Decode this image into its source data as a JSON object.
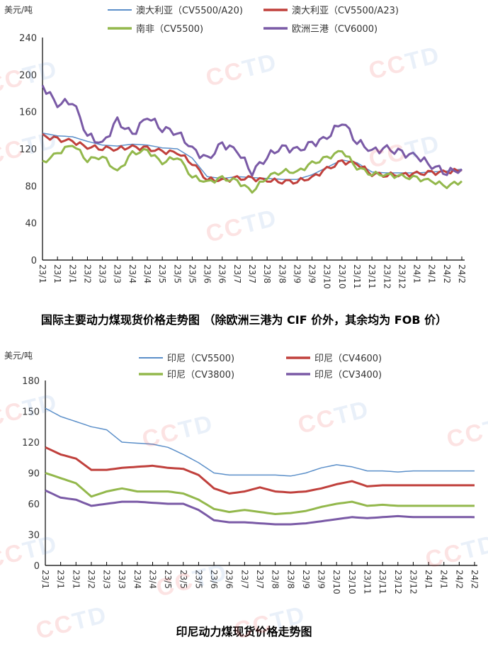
{
  "watermark": "CCTD",
  "charts": [
    {
      "chart_data": {
        "type": "line",
        "title": "国际主要动力煤现货价格走势图 （除欧洲三港为 CIF 价外，其余均为 FOB 价）",
        "ylabel": "美元/吨",
        "xlabel": "",
        "ylim": [
          0,
          240
        ],
        "yticks": [
          0,
          40,
          80,
          120,
          160,
          200,
          240
        ],
        "legend": "top",
        "grid": false,
        "categories": [
          "23/1",
          "23/1",
          "23/1",
          "23/2",
          "23/3",
          "23/3",
          "23/4",
          "23/4",
          "23/5",
          "23/5",
          "23/5",
          "23/6",
          "23/6",
          "23/7",
          "23/7",
          "23/8",
          "23/8",
          "23/9",
          "23/9",
          "23/10",
          "23/10",
          "23/11",
          "23/11",
          "23/12",
          "23/12",
          "24/1",
          "24/1",
          "24/2",
          "24/2"
        ],
        "series": [
          {
            "name": "澳大利亚（CV5500/A20)",
            "color": "#5b8fc9",
            "width": 1.5,
            "values": [
              137,
              134,
              133,
              128,
              124,
              123,
              125,
              124,
              121,
              120,
              110,
              90,
              88,
              90,
              89,
              88,
              87,
              87,
              92,
              100,
              108,
              105,
              95,
              94,
              94,
              94,
              95,
              96,
              98
            ]
          },
          {
            "name": "澳大利亚（CV5500/A23)",
            "color": "#c0403c",
            "width": 3,
            "values": [
              134,
              130,
              128,
              122,
              121,
              120,
              122,
              120,
              117,
              116,
              105,
              87,
              86,
              88,
              88,
              86,
              85,
              85,
              89,
              98,
              106,
              104,
              93,
              92,
              92,
              93,
              94,
              95,
              97
            ]
          },
          {
            "name": "南非（CV5500)",
            "color": "#93b84c",
            "width": 3,
            "values": [
              105,
              115,
              125,
              108,
              112,
              95,
              115,
              118,
              105,
              112,
              90,
              84,
              88,
              85,
              74,
              90,
              96,
              95,
              104,
              110,
              118,
              100,
              93,
              92,
              90,
              88,
              85,
              80,
              85
            ]
          },
          {
            "name": "欧洲三港（CV6000)",
            "color": "#7a5aa6",
            "width": 3,
            "values": [
              188,
              168,
              172,
              135,
              125,
              150,
              135,
              155,
              142,
              138,
              120,
              108,
              125,
              118,
              95,
              112,
              122,
              118,
              125,
              132,
              150,
              128,
              118,
              120,
              115,
              112,
              102,
              95,
              98
            ]
          }
        ]
      }
    },
    {
      "chart_data": {
        "type": "line",
        "title": "印尼动力煤现货价格走势图",
        "ylabel": "美元/吨",
        "xlabel": "",
        "ylim": [
          0,
          180
        ],
        "yticks": [
          0,
          30,
          60,
          90,
          120,
          150,
          180
        ],
        "legend": "top",
        "grid": false,
        "categories": [
          "23/1",
          "23/1",
          "23/1",
          "23/2",
          "23/3",
          "23/3",
          "23/4",
          "23/4",
          "23/5",
          "23/5",
          "23/5",
          "23/6",
          "23/6",
          "23/7",
          "23/7",
          "23/8",
          "23/8",
          "23/9",
          "23/9",
          "23/10",
          "23/10",
          "23/11",
          "23/11",
          "23/12",
          "23/12",
          "24/1",
          "24/1",
          "24/2",
          "24/2"
        ],
        "series": [
          {
            "name": "印尼（CV5500)",
            "color": "#5b8fc9",
            "width": 1.5,
            "values": [
              153,
              145,
              140,
              135,
              132,
              120,
              119,
              118,
              115,
              108,
              100,
              90,
              88,
              88,
              88,
              88,
              87,
              90,
              95,
              98,
              96,
              92,
              92,
              91,
              92,
              92,
              92,
              92,
              92
            ]
          },
          {
            "name": "印尼（CV4600)",
            "color": "#c0403c",
            "width": 3,
            "values": [
              115,
              108,
              104,
              93,
              93,
              95,
              96,
              97,
              95,
              94,
              88,
              75,
              70,
              72,
              76,
              72,
              71,
              72,
              75,
              79,
              82,
              77,
              78,
              78,
              78,
              78,
              78,
              78,
              78
            ]
          },
          {
            "name": "印尼（CV3800)",
            "color": "#93b84c",
            "width": 3,
            "values": [
              90,
              85,
              80,
              67,
              72,
              75,
              72,
              72,
              72,
              70,
              64,
              55,
              52,
              54,
              52,
              50,
              51,
              53,
              57,
              60,
              62,
              58,
              59,
              58,
              58,
              58,
              58,
              58,
              58
            ]
          },
          {
            "name": "印尼（CV3400)",
            "color": "#7a5aa6",
            "width": 3,
            "values": [
              73,
              66,
              64,
              58,
              60,
              62,
              62,
              61,
              60,
              60,
              54,
              44,
              42,
              42,
              41,
              40,
              40,
              41,
              43,
              45,
              47,
              46,
              47,
              48,
              47,
              47,
              47,
              47,
              47
            ]
          }
        ]
      }
    }
  ]
}
